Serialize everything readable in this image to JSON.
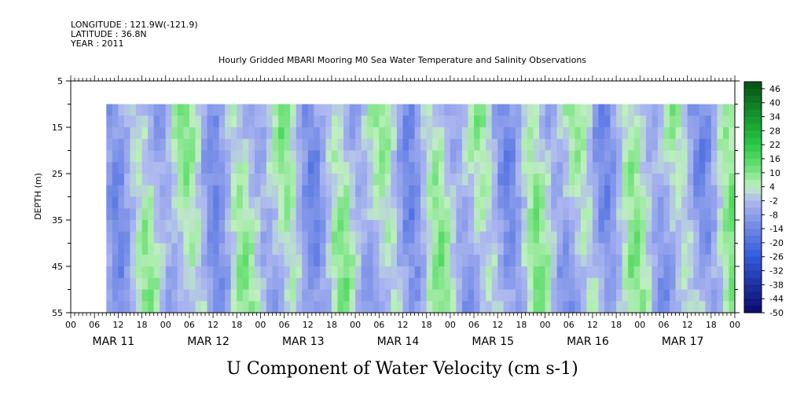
{
  "header": {
    "longitude": "LONGITUDE : 121.9W(-121.9)",
    "latitude": "LATITUDE : 36.8N",
    "year": "YEAR : 2011"
  },
  "chart_data": {
    "type": "heatmap",
    "title": "Hourly Gridded MBARI Mooring M0 Sea Water Temperature and Salinity Observations",
    "xlabel": "U Component of Water Velocity (cm s-1)",
    "ylabel": "DEPTH (m)",
    "ylim": [
      55,
      5
    ],
    "y_ticks": [
      "5",
      "15",
      "25",
      "35",
      "45",
      "55"
    ],
    "x_hour_ticks": [
      "00",
      "06",
      "12",
      "18",
      "00",
      "06",
      "12",
      "18",
      "00",
      "06",
      "12",
      "18",
      "00",
      "06",
      "12",
      "18",
      "00",
      "06",
      "12",
      "18",
      "00",
      "06",
      "12",
      "18",
      "00",
      "06",
      "12",
      "18",
      "00"
    ],
    "x_dates": [
      "MAR 11",
      "MAR 12",
      "MAR 13",
      "MAR 14",
      "MAR 15",
      "MAR 16",
      "MAR 17"
    ],
    "data_depth_range": [
      10,
      55
    ],
    "colorbar": {
      "labels": [
        "46",
        "40",
        "34",
        "28",
        "22",
        "16",
        "10",
        "4",
        "-2",
        "-8",
        "-14",
        "-20",
        "-26",
        "-32",
        "-38",
        "-44",
        "-50"
      ],
      "range": [
        -50,
        49
      ]
    },
    "colors": {
      "neg_strong": "#1a2e8f",
      "neg_mid": "#3f66e0",
      "neg_weak": "#aab6ee",
      "pos_weak": "#b4eeb4",
      "pos_mid": "#3bd84e",
      "pos_strong": "#0c6b1c"
    }
  }
}
